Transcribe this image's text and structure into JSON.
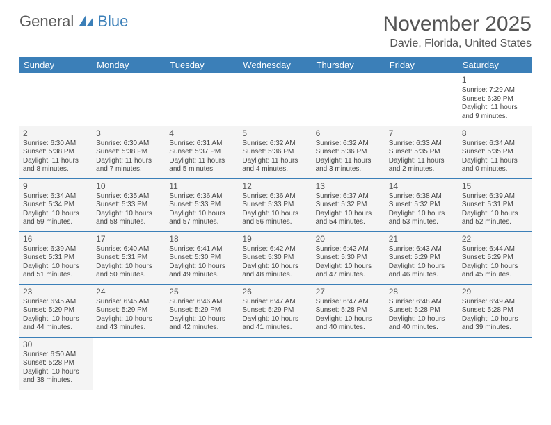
{
  "logo": {
    "part1": "General",
    "part2": "Blue"
  },
  "title": "November 2025",
  "location": "Davie, Florida, United States",
  "colors": {
    "header_bg": "#3b7fb8",
    "header_text": "#ffffff",
    "cell_bg": "#f4f4f4",
    "border": "#3b7fb8"
  },
  "weekdays": [
    "Sunday",
    "Monday",
    "Tuesday",
    "Wednesday",
    "Thursday",
    "Friday",
    "Saturday"
  ],
  "weeks": [
    [
      null,
      null,
      null,
      null,
      null,
      null,
      {
        "n": "1",
        "sr": "Sunrise: 7:29 AM",
        "ss": "Sunset: 6:39 PM",
        "d1": "Daylight: 11 hours",
        "d2": "and 9 minutes."
      }
    ],
    [
      {
        "n": "2",
        "sr": "Sunrise: 6:30 AM",
        "ss": "Sunset: 5:38 PM",
        "d1": "Daylight: 11 hours",
        "d2": "and 8 minutes."
      },
      {
        "n": "3",
        "sr": "Sunrise: 6:30 AM",
        "ss": "Sunset: 5:38 PM",
        "d1": "Daylight: 11 hours",
        "d2": "and 7 minutes."
      },
      {
        "n": "4",
        "sr": "Sunrise: 6:31 AM",
        "ss": "Sunset: 5:37 PM",
        "d1": "Daylight: 11 hours",
        "d2": "and 5 minutes."
      },
      {
        "n": "5",
        "sr": "Sunrise: 6:32 AM",
        "ss": "Sunset: 5:36 PM",
        "d1": "Daylight: 11 hours",
        "d2": "and 4 minutes."
      },
      {
        "n": "6",
        "sr": "Sunrise: 6:32 AM",
        "ss": "Sunset: 5:36 PM",
        "d1": "Daylight: 11 hours",
        "d2": "and 3 minutes."
      },
      {
        "n": "7",
        "sr": "Sunrise: 6:33 AM",
        "ss": "Sunset: 5:35 PM",
        "d1": "Daylight: 11 hours",
        "d2": "and 2 minutes."
      },
      {
        "n": "8",
        "sr": "Sunrise: 6:34 AM",
        "ss": "Sunset: 5:35 PM",
        "d1": "Daylight: 11 hours",
        "d2": "and 0 minutes."
      }
    ],
    [
      {
        "n": "9",
        "sr": "Sunrise: 6:34 AM",
        "ss": "Sunset: 5:34 PM",
        "d1": "Daylight: 10 hours",
        "d2": "and 59 minutes."
      },
      {
        "n": "10",
        "sr": "Sunrise: 6:35 AM",
        "ss": "Sunset: 5:33 PM",
        "d1": "Daylight: 10 hours",
        "d2": "and 58 minutes."
      },
      {
        "n": "11",
        "sr": "Sunrise: 6:36 AM",
        "ss": "Sunset: 5:33 PM",
        "d1": "Daylight: 10 hours",
        "d2": "and 57 minutes."
      },
      {
        "n": "12",
        "sr": "Sunrise: 6:36 AM",
        "ss": "Sunset: 5:33 PM",
        "d1": "Daylight: 10 hours",
        "d2": "and 56 minutes."
      },
      {
        "n": "13",
        "sr": "Sunrise: 6:37 AM",
        "ss": "Sunset: 5:32 PM",
        "d1": "Daylight: 10 hours",
        "d2": "and 54 minutes."
      },
      {
        "n": "14",
        "sr": "Sunrise: 6:38 AM",
        "ss": "Sunset: 5:32 PM",
        "d1": "Daylight: 10 hours",
        "d2": "and 53 minutes."
      },
      {
        "n": "15",
        "sr": "Sunrise: 6:39 AM",
        "ss": "Sunset: 5:31 PM",
        "d1": "Daylight: 10 hours",
        "d2": "and 52 minutes."
      }
    ],
    [
      {
        "n": "16",
        "sr": "Sunrise: 6:39 AM",
        "ss": "Sunset: 5:31 PM",
        "d1": "Daylight: 10 hours",
        "d2": "and 51 minutes."
      },
      {
        "n": "17",
        "sr": "Sunrise: 6:40 AM",
        "ss": "Sunset: 5:31 PM",
        "d1": "Daylight: 10 hours",
        "d2": "and 50 minutes."
      },
      {
        "n": "18",
        "sr": "Sunrise: 6:41 AM",
        "ss": "Sunset: 5:30 PM",
        "d1": "Daylight: 10 hours",
        "d2": "and 49 minutes."
      },
      {
        "n": "19",
        "sr": "Sunrise: 6:42 AM",
        "ss": "Sunset: 5:30 PM",
        "d1": "Daylight: 10 hours",
        "d2": "and 48 minutes."
      },
      {
        "n": "20",
        "sr": "Sunrise: 6:42 AM",
        "ss": "Sunset: 5:30 PM",
        "d1": "Daylight: 10 hours",
        "d2": "and 47 minutes."
      },
      {
        "n": "21",
        "sr": "Sunrise: 6:43 AM",
        "ss": "Sunset: 5:29 PM",
        "d1": "Daylight: 10 hours",
        "d2": "and 46 minutes."
      },
      {
        "n": "22",
        "sr": "Sunrise: 6:44 AM",
        "ss": "Sunset: 5:29 PM",
        "d1": "Daylight: 10 hours",
        "d2": "and 45 minutes."
      }
    ],
    [
      {
        "n": "23",
        "sr": "Sunrise: 6:45 AM",
        "ss": "Sunset: 5:29 PM",
        "d1": "Daylight: 10 hours",
        "d2": "and 44 minutes."
      },
      {
        "n": "24",
        "sr": "Sunrise: 6:45 AM",
        "ss": "Sunset: 5:29 PM",
        "d1": "Daylight: 10 hours",
        "d2": "and 43 minutes."
      },
      {
        "n": "25",
        "sr": "Sunrise: 6:46 AM",
        "ss": "Sunset: 5:29 PM",
        "d1": "Daylight: 10 hours",
        "d2": "and 42 minutes."
      },
      {
        "n": "26",
        "sr": "Sunrise: 6:47 AM",
        "ss": "Sunset: 5:29 PM",
        "d1": "Daylight: 10 hours",
        "d2": "and 41 minutes."
      },
      {
        "n": "27",
        "sr": "Sunrise: 6:47 AM",
        "ss": "Sunset: 5:28 PM",
        "d1": "Daylight: 10 hours",
        "d2": "and 40 minutes."
      },
      {
        "n": "28",
        "sr": "Sunrise: 6:48 AM",
        "ss": "Sunset: 5:28 PM",
        "d1": "Daylight: 10 hours",
        "d2": "and 40 minutes."
      },
      {
        "n": "29",
        "sr": "Sunrise: 6:49 AM",
        "ss": "Sunset: 5:28 PM",
        "d1": "Daylight: 10 hours",
        "d2": "and 39 minutes."
      }
    ],
    [
      {
        "n": "30",
        "sr": "Sunrise: 6:50 AM",
        "ss": "Sunset: 5:28 PM",
        "d1": "Daylight: 10 hours",
        "d2": "and 38 minutes."
      },
      null,
      null,
      null,
      null,
      null,
      null
    ]
  ]
}
